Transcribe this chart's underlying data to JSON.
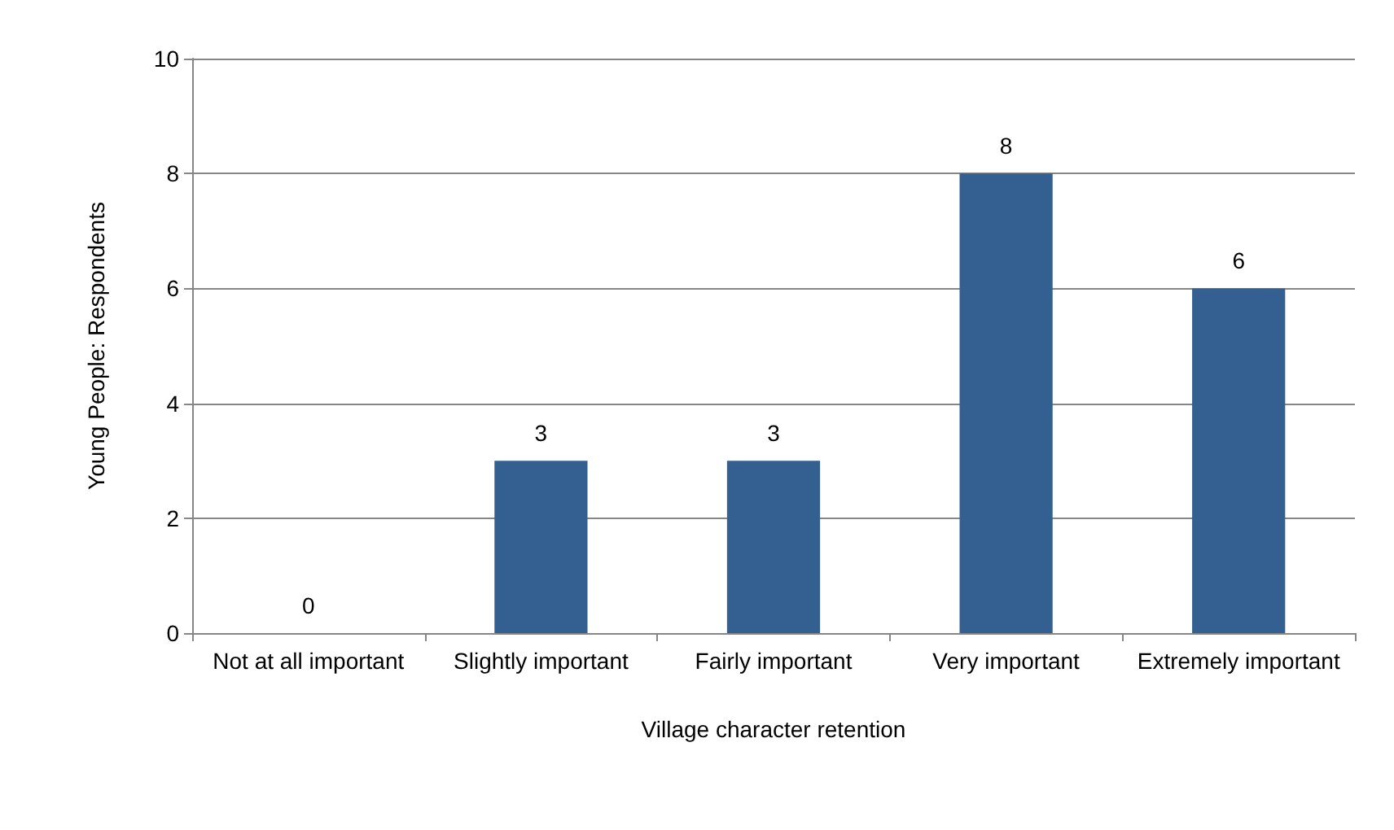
{
  "chart_data": {
    "type": "bar",
    "xlabel": "Village character retention",
    "ylabel": "Young People: Respondents",
    "categories": [
      "Not at all important",
      "Slightly important",
      "Fairly important",
      "Very important",
      "Extremely important"
    ],
    "values": [
      0,
      3,
      3,
      8,
      6
    ],
    "color": "#335f91",
    "ylim": [
      0,
      10
    ],
    "yticks": [
      0,
      2,
      4,
      6,
      8,
      10
    ],
    "grid": "y",
    "data_labels": true
  }
}
